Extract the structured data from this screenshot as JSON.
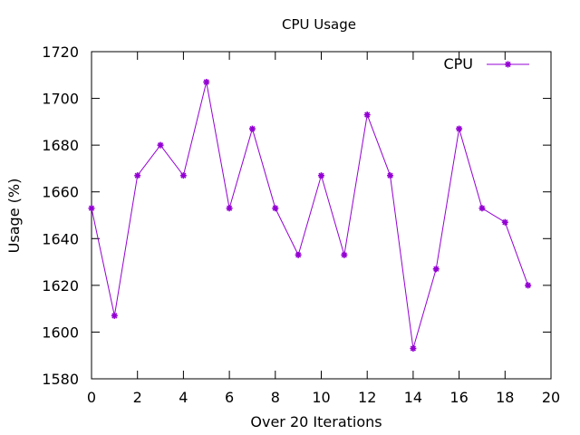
{
  "chart_data": {
    "type": "line",
    "title": "CPU Usage",
    "xlabel": "Over 20 Iterations",
    "ylabel": "Usage (%)",
    "xlim": [
      0,
      20
    ],
    "ylim": [
      1580,
      1720
    ],
    "xticks": [
      0,
      2,
      4,
      6,
      8,
      10,
      12,
      14,
      16,
      18,
      20
    ],
    "yticks": [
      1580,
      1600,
      1620,
      1640,
      1660,
      1680,
      1700,
      1720
    ],
    "grid": false,
    "legend_position": "top-right",
    "series": [
      {
        "name": "CPU",
        "color": "#9400d3",
        "marker": "asterisk",
        "x": [
          0,
          1,
          2,
          3,
          4,
          5,
          6,
          7,
          8,
          9,
          10,
          11,
          12,
          13,
          14,
          15,
          16,
          17,
          18,
          19
        ],
        "y": [
          1653,
          1607,
          1667,
          1680,
          1667,
          1707,
          1653,
          1687,
          1653,
          1633,
          1667,
          1633,
          1693,
          1667,
          1593,
          1627,
          1687,
          1653,
          1647,
          1620
        ]
      }
    ]
  }
}
